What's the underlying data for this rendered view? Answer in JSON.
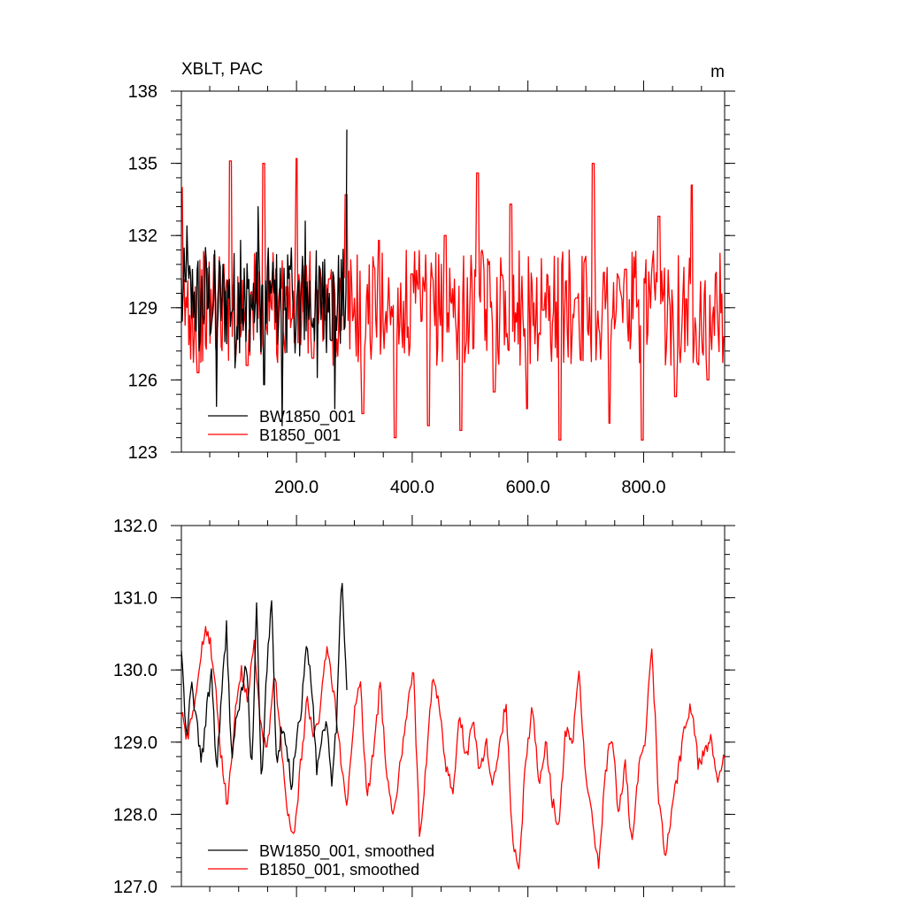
{
  "chart_data": [
    {
      "type": "line",
      "title": "XBLT, PAC",
      "units": "m",
      "xlim": [
        1,
        940
      ],
      "ylim": [
        123,
        138
      ],
      "x_tick_labels": [
        "200.0",
        "400.0",
        "600.0",
        "800.0"
      ],
      "x_ticks": [
        200,
        400,
        600,
        800
      ],
      "y_tick_labels": [
        "123",
        "126",
        "129",
        "132",
        "135",
        "138"
      ],
      "y_ticks": [
        123,
        126,
        129,
        132,
        135,
        138
      ],
      "grid": false,
      "legend": "bottom-left",
      "series": [
        {
          "name": "BW1850_001",
          "color": "#000000",
          "x_range": [
            1,
            287
          ],
          "mean": 129.3,
          "amplitude": 2.2,
          "values": [
            130.2,
            132.4,
            128.6,
            127.2,
            131.5,
            128.0,
            124.9,
            130.8,
            129.4,
            126.5,
            131.8,
            127.6,
            128.9,
            133.2,
            125.8,
            130.1,
            128.4,
            124.1,
            131.2,
            129.0,
            127.0,
            132.6,
            128.3,
            126.1,
            130.9,
            129.6,
            124.8,
            131.0,
            136.4
          ]
        },
        {
          "name": "B1850_001",
          "color": "#ff0000",
          "x_range": [
            1,
            940
          ],
          "mean": 129.0,
          "amplitude": 2.4,
          "values": [
            134.0,
            126.3,
            131.2,
            135.1,
            126.6,
            135.0,
            129.8,
            135.2,
            126.9,
            130.2,
            133.7,
            124.6,
            131.8,
            123.6,
            130.4,
            124.1,
            132.0,
            123.9,
            134.6,
            125.5,
            133.3,
            124.8,
            128.9,
            123.5,
            129.4,
            135.0,
            124.2,
            130.6,
            123.5,
            132.8,
            125.3,
            134.1,
            126.0,
            127.8
          ]
        }
      ]
    },
    {
      "type": "line",
      "xlim": [
        1,
        940
      ],
      "ylim": [
        127.0,
        132.0
      ],
      "y_tick_labels": [
        "127.0",
        "128.0",
        "129.0",
        "130.0",
        "131.0",
        "132.0"
      ],
      "y_ticks": [
        127,
        128,
        129,
        130,
        131,
        132
      ],
      "x_ticks": [
        200,
        400,
        600,
        800
      ],
      "grid": false,
      "legend": "bottom-left",
      "series": [
        {
          "name": "BW1850_001, smoothed",
          "color": "#000000",
          "x_range": [
            1,
            287
          ],
          "values": [
            130.3,
            129.0,
            129.8,
            129.3,
            128.7,
            129.4,
            130.0,
            128.6,
            129.6,
            130.6,
            128.8,
            129.3,
            129.7,
            130.1,
            128.5,
            130.9,
            128.3,
            130.0,
            131.0,
            128.6,
            129.2,
            128.9,
            128.4,
            129.1,
            129.5,
            130.4,
            129.8,
            128.6,
            129.1,
            129.3,
            128.5,
            129.3,
            131.4,
            129.7
          ]
        },
        {
          "name": "B1850_001, smoothed",
          "color": "#ff0000",
          "x_range": [
            1,
            940
          ],
          "values": [
            129.4,
            129.0,
            129.6,
            130.3,
            130.6,
            129.9,
            128.8,
            128.1,
            129.3,
            130.0,
            129.6,
            130.4,
            129.2,
            128.9,
            130.0,
            129.1,
            128.0,
            127.6,
            128.7,
            129.6,
            129.0,
            129.5,
            130.4,
            129.7,
            128.8,
            128.1,
            129.3,
            129.9,
            128.2,
            128.9,
            129.8,
            128.6,
            128.0,
            128.7,
            129.4,
            130.1,
            127.6,
            128.8,
            129.9,
            129.5,
            128.6,
            128.3,
            129.4,
            128.8,
            129.3,
            128.6,
            129.0,
            128.4,
            128.9,
            129.6,
            127.6,
            127.3,
            128.8,
            129.5,
            128.4,
            129.0,
            128.2,
            127.8,
            129.2,
            128.9,
            130.0,
            128.6,
            127.9,
            127.3,
            128.6,
            129.1,
            128.0,
            128.7,
            127.5,
            128.6,
            129.0,
            130.4,
            128.3,
            127.4,
            128.0,
            128.6,
            129.2,
            129.5,
            128.7,
            128.9,
            129.1,
            128.4,
            128.8
          ]
        }
      ]
    }
  ]
}
